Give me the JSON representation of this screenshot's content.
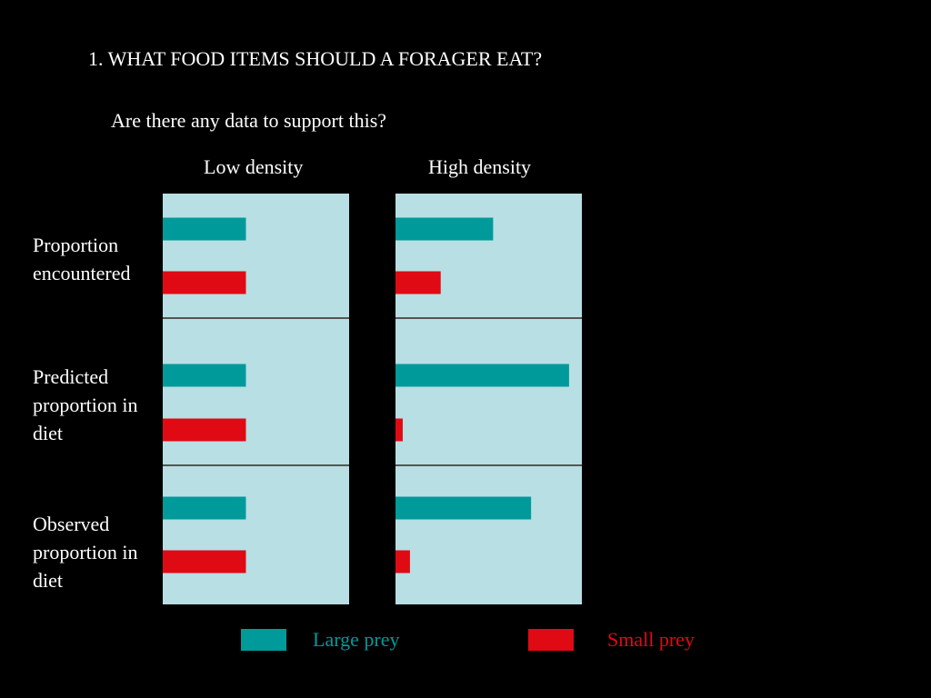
{
  "heading": "1. WHAT FOOD ITEMS SHOULD A FORAGER EAT?",
  "subheading": "Are there any data to support this?",
  "colors": {
    "background": "#000000",
    "panel": "#b8dfe3",
    "large_prey": "#009a9a",
    "small_prey": "#e00a14",
    "divider": "#555555"
  },
  "chart_data": {
    "type": "bar",
    "orientation": "horizontal",
    "panels": [
      "Low density",
      "High density"
    ],
    "rows": [
      "Proportion\nencountered",
      "Predicted\nproportion in\ndiet",
      "Observed\nproportion in\ndiet"
    ],
    "series_names": [
      "Large prey",
      "Small  prey"
    ],
    "xlim": [
      0,
      1
    ],
    "values": {
      "Low density": {
        "Proportion encountered": {
          "Large prey": 0.46,
          "Small prey": 0.46
        },
        "Predicted proportion in diet": {
          "Large prey": 0.46,
          "Small prey": 0.46
        },
        "Observed proportion in diet": {
          "Large prey": 0.46,
          "Small prey": 0.46
        }
      },
      "High density": {
        "Proportion encountered": {
          "Large prey": 0.54,
          "Small prey": 0.25
        },
        "Predicted proportion in diet": {
          "Large prey": 0.96,
          "Small prey": 0.04
        },
        "Observed proportion in diet": {
          "Large prey": 0.75,
          "Small prey": 0.08
        }
      }
    },
    "grid": false,
    "legend_position": "bottom"
  }
}
